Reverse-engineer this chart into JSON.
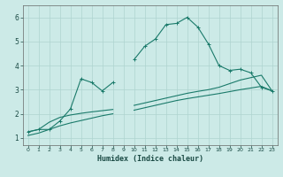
{
  "xlabel": "Humidex (Indice chaleur)",
  "bg_color": "#cceae7",
  "grid_color": "#aed4d0",
  "line_color": "#1a7a6a",
  "xlim": [
    -0.5,
    23.5
  ],
  "ylim": [
    0.7,
    6.5
  ],
  "x_ticks": [
    0,
    1,
    2,
    3,
    4,
    5,
    6,
    7,
    8,
    9,
    10,
    11,
    12,
    13,
    14,
    15,
    16,
    17,
    18,
    19,
    20,
    21,
    22,
    23
  ],
  "y_ticks": [
    1,
    2,
    3,
    4,
    5,
    6
  ],
  "curve1_x": [
    0,
    1,
    2,
    3,
    4,
    5,
    6,
    7,
    8,
    9,
    10,
    11,
    12,
    13,
    14,
    15,
    16,
    17,
    18,
    19,
    20,
    21,
    22,
    23
  ],
  "curve1_y": [
    1.25,
    1.35,
    1.35,
    1.7,
    2.2,
    3.45,
    3.3,
    2.95,
    3.3,
    null,
    4.25,
    4.8,
    5.1,
    5.7,
    5.75,
    6.0,
    5.6,
    4.9,
    4.0,
    3.8,
    3.85,
    3.7,
    3.1,
    2.95
  ],
  "curve2_x": [
    0,
    1,
    2,
    3,
    4,
    5,
    6,
    7,
    8,
    9,
    10,
    11,
    12,
    13,
    14,
    15,
    16,
    17,
    18,
    19,
    20,
    21,
    22,
    23
  ],
  "curve2_y": [
    1.25,
    1.35,
    1.65,
    1.85,
    1.95,
    2.02,
    2.08,
    2.13,
    2.18,
    null,
    2.35,
    2.45,
    2.55,
    2.65,
    2.75,
    2.85,
    2.93,
    3.0,
    3.1,
    3.25,
    3.4,
    3.5,
    3.6,
    2.95
  ],
  "curve3_x": [
    0,
    1,
    2,
    3,
    4,
    5,
    6,
    7,
    8,
    9,
    10,
    11,
    12,
    13,
    14,
    15,
    16,
    17,
    18,
    19,
    20,
    21,
    22,
    23
  ],
  "curve3_y": [
    1.1,
    1.2,
    1.35,
    1.5,
    1.62,
    1.72,
    1.82,
    1.92,
    2.0,
    null,
    2.15,
    2.25,
    2.35,
    2.45,
    2.55,
    2.63,
    2.7,
    2.77,
    2.84,
    2.92,
    3.0,
    3.07,
    3.14,
    2.95
  ]
}
